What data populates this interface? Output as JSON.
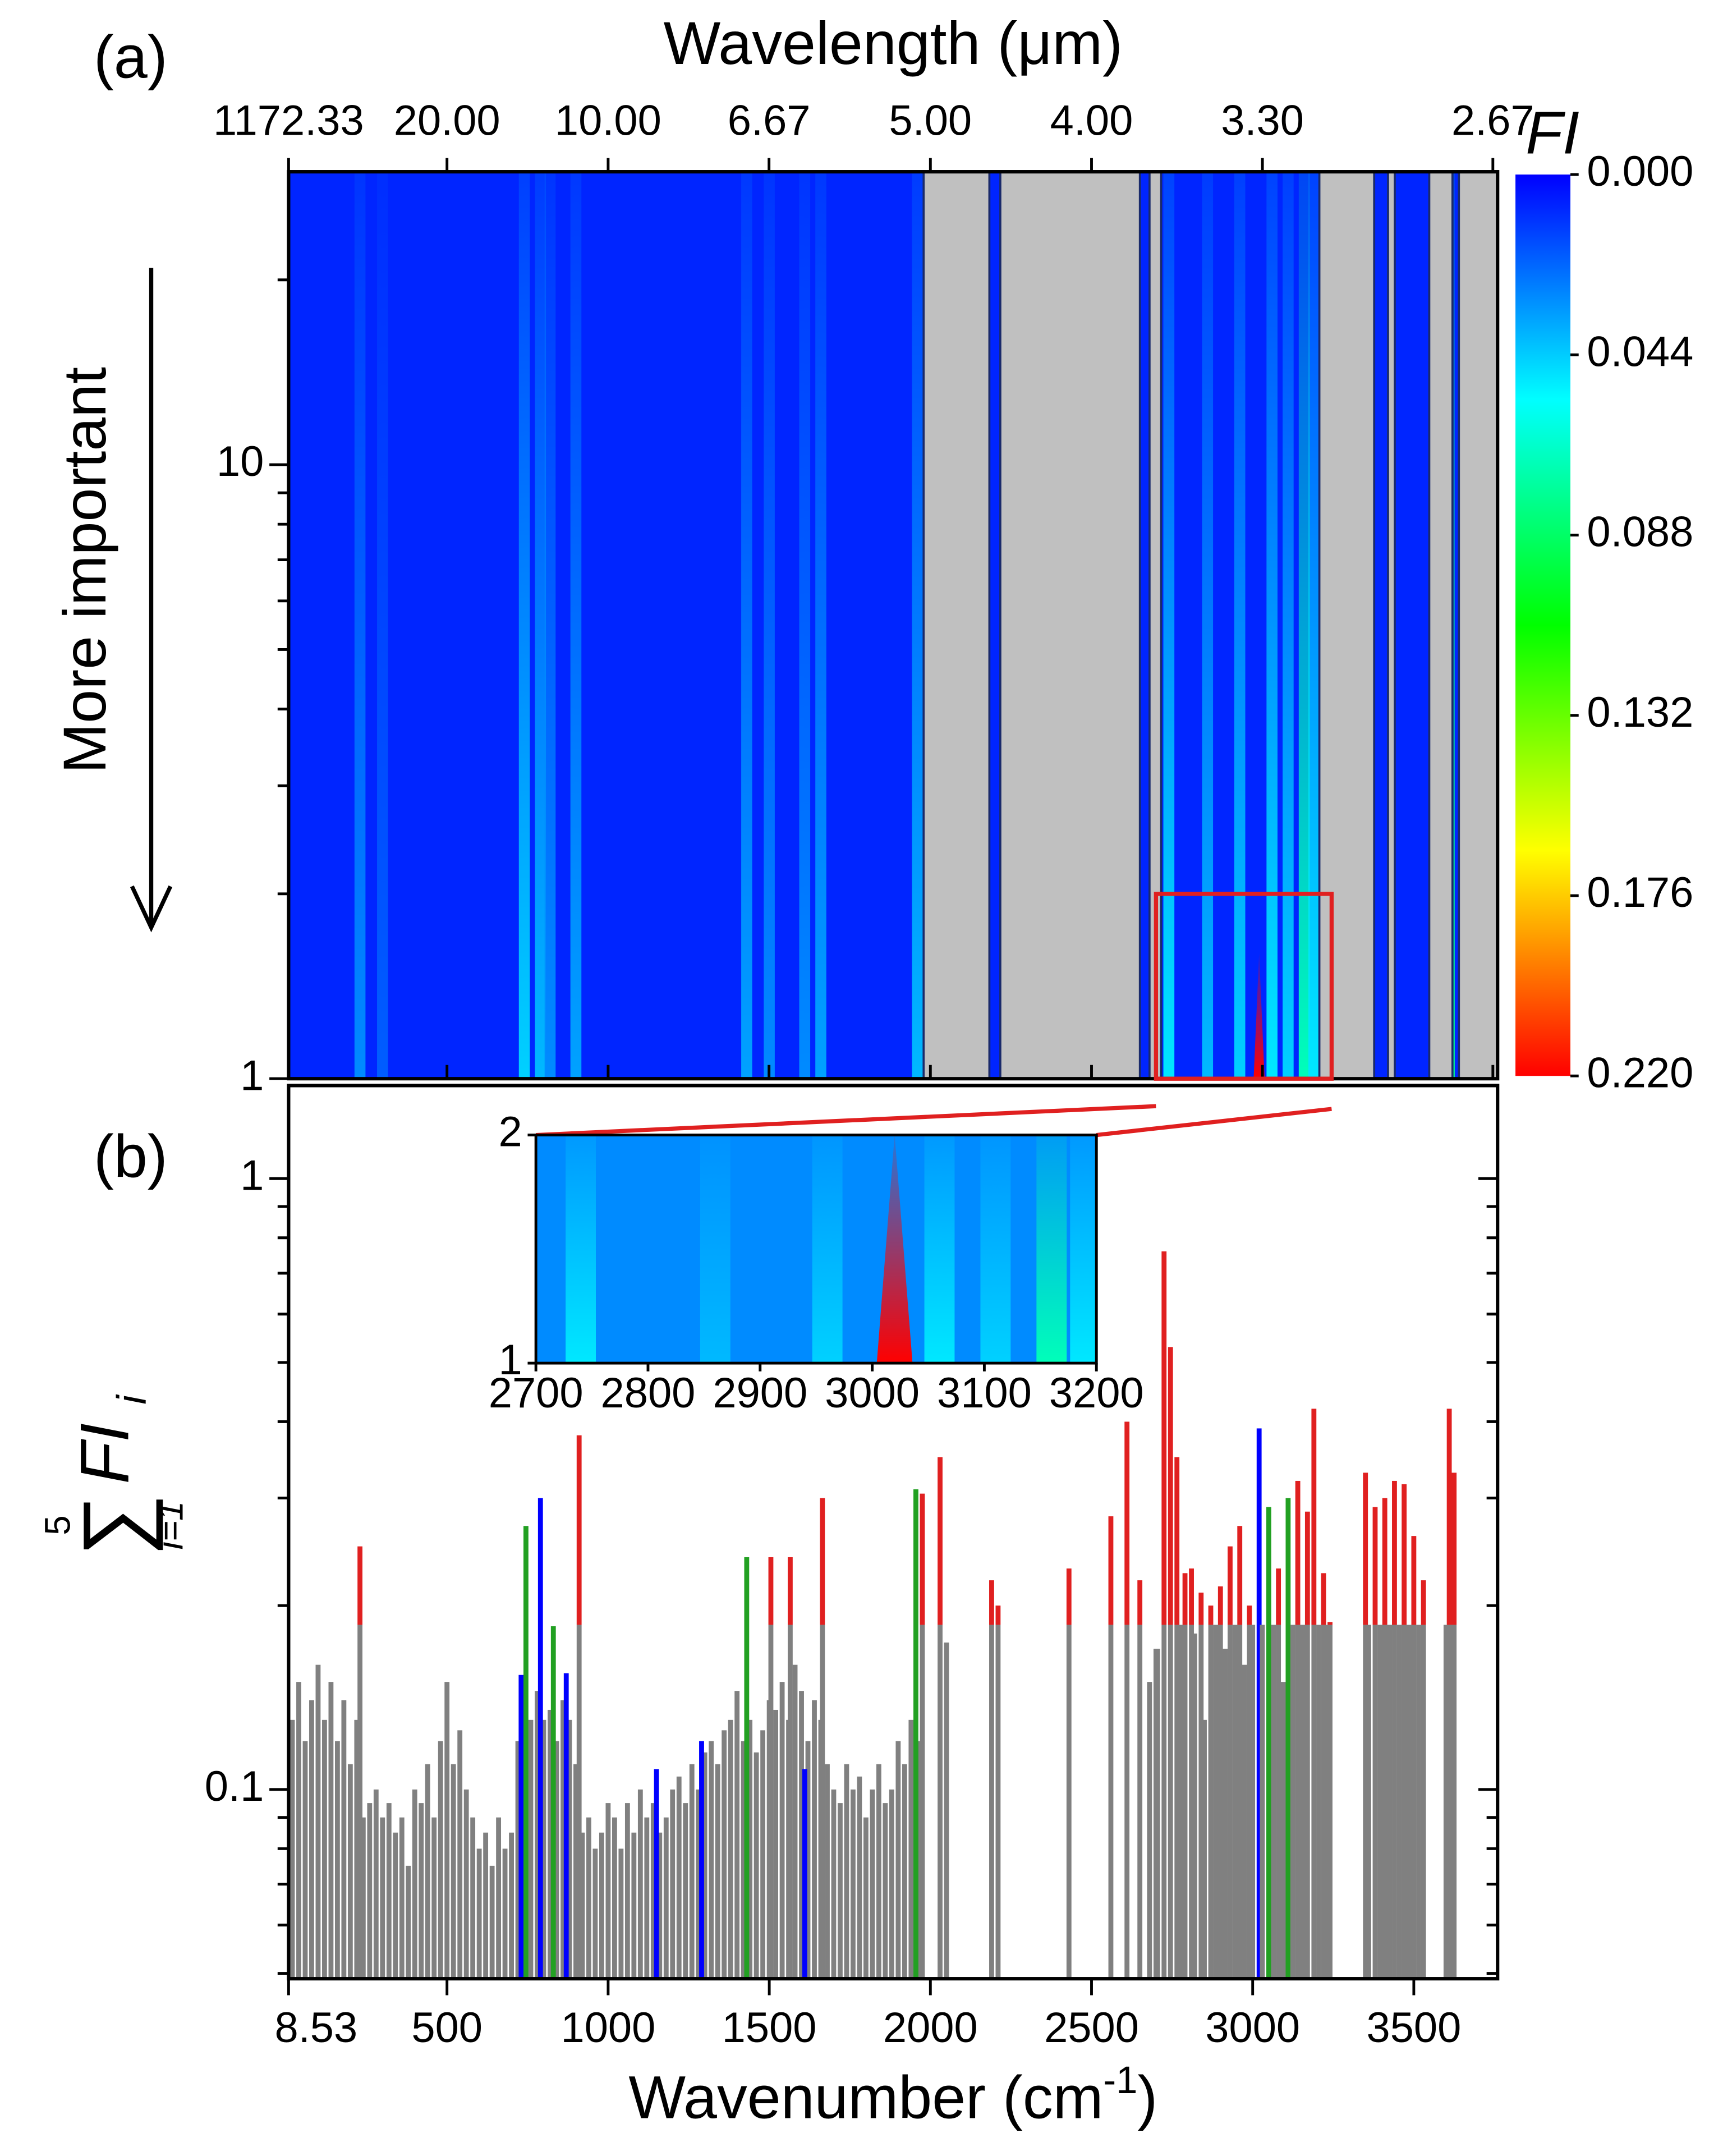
{
  "chart_data": [
    {
      "type": "heatmap",
      "panel_label": "(a)",
      "title": "Wavelength (μm)",
      "ylabel": "More important",
      "colorbar_label": "FI",
      "xlim": [
        8.53,
        3760
      ],
      "ylim": [
        1,
        30
      ],
      "log_y": true,
      "yticks": [
        1,
        10
      ],
      "yminor": [
        2,
        3,
        4,
        5,
        6,
        7,
        8,
        9,
        20
      ],
      "top_ticks": [
        1172.33,
        {
          "value": 20,
          "label": "20.00"
        },
        {
          "value": 10,
          "label": "10.00"
        },
        6.67,
        {
          "value": 5,
          "label": "5.00"
        },
        {
          "value": 4,
          "label": "4.00"
        },
        {
          "value": 3.3,
          "label": "3.30"
        },
        2.67
      ],
      "clim": [
        0,
        0.22
      ],
      "cticks": [
        {
          "value": 0,
          "label": "0.000"
        },
        0.044,
        0.088,
        0.132,
        0.176,
        {
          "value": 0.22,
          "label": "0.220"
        }
      ],
      "colormap": [
        "#0000ff",
        "#00ffff",
        "#00ff00",
        "#ffff00",
        "#ff0000"
      ],
      "background_fi": 0.008,
      "mask_color": "#c0c0c0",
      "masked_ranges": [
        [
          1979,
          2183
        ],
        [
          2217,
          2650
        ],
        [
          2680,
          2716
        ],
        [
          3207,
          3377
        ],
        [
          3420,
          3441
        ],
        [
          3548,
          3620
        ],
        [
          3640,
          3760
        ]
      ],
      "stripes": [
        {
          "x": 230,
          "fi": 0.03
        },
        {
          "x": 300,
          "fi": 0.02
        },
        {
          "x": 740,
          "fi": 0.045
        },
        {
          "x": 790,
          "fi": 0.04
        },
        {
          "x": 820,
          "fi": 0.03
        },
        {
          "x": 900,
          "fi": 0.035
        },
        {
          "x": 1430,
          "fi": 0.035
        },
        {
          "x": 1500,
          "fi": 0.03
        },
        {
          "x": 1610,
          "fi": 0.03
        },
        {
          "x": 1660,
          "fi": 0.035
        },
        {
          "x": 1960,
          "fi": 0.04
        },
        {
          "x": 2740,
          "fi": 0.05
        },
        {
          "x": 2860,
          "fi": 0.04
        },
        {
          "x": 2960,
          "fi": 0.045
        },
        {
          "x": 3020,
          "fi": 0.22
        },
        {
          "x": 3060,
          "fi": 0.05
        },
        {
          "x": 3110,
          "fi": 0.045
        },
        {
          "x": 3160,
          "fi": 0.07
        },
        {
          "x": 3190,
          "fi": 0.05
        },
        {
          "x": 3610,
          "fi": 0.08
        }
      ],
      "box": {
        "xlim": [
          2700,
          3245
        ],
        "ylim": [
          1,
          2
        ],
        "color": "#e02020"
      },
      "inset": {
        "xlim": [
          2700,
          3200
        ],
        "ylim": [
          1,
          2
        ],
        "xticks": [
          2700,
          2800,
          2900,
          3000,
          3100,
          3200
        ],
        "yticks": [
          1,
          2
        ],
        "background_fi": 0.03
      }
    },
    {
      "type": "bar",
      "panel_label": "(b)",
      "xlabel": {
        "text": "Wavenumber (cm",
        "sup": "-1",
        "end": ")"
      },
      "ylabel": {
        "upper": "5",
        "sum": "∑",
        "lower": "i=1",
        "term": "FI",
        "sub": "i"
      },
      "xlim": [
        8.53,
        3760
      ],
      "ylim": [
        0.049,
        1.42
      ],
      "log_y": true,
      "xticks": [
        8.53,
        500,
        1000,
        1500,
        2000,
        2500,
        3000,
        3500
      ],
      "yticks": [
        0.1,
        1
      ],
      "yminor": [
        0.05,
        0.06,
        0.07,
        0.08,
        0.09,
        0.2,
        0.3,
        0.4,
        0.5,
        0.6,
        0.7,
        0.8,
        0.9
      ],
      "highlight_above": 0.186,
      "highlight_color": "#e02020",
      "x": [
        20,
        40,
        60,
        80,
        100,
        120,
        140,
        160,
        180,
        200,
        220,
        240,
        260,
        280,
        300,
        320,
        340,
        360,
        380,
        400,
        420,
        440,
        460,
        480,
        500,
        520,
        540,
        560,
        580,
        600,
        620,
        640,
        660,
        680,
        700,
        720,
        740,
        760,
        780,
        800,
        820,
        840,
        860,
        880,
        900,
        920,
        940,
        960,
        980,
        1000,
        1020,
        1040,
        1060,
        1080,
        1100,
        1120,
        1140,
        1160,
        1180,
        1200,
        1220,
        1240,
        1260,
        1280,
        1300,
        1320,
        1340,
        1360,
        1380,
        1400,
        1420,
        1440,
        1460,
        1480,
        1500,
        1520,
        1540,
        1560,
        1580,
        1600,
        1620,
        1640,
        1660,
        1680,
        1700,
        1720,
        1740,
        1760,
        1780,
        1800,
        1820,
        1840,
        1860,
        1880,
        1900,
        1920,
        1940,
        1960,
        230,
        730,
        745,
        790,
        830,
        870,
        910,
        1150,
        1290,
        1430,
        1505,
        1565,
        1610,
        1665,
        1955,
        1975,
        2030,
        2050,
        2190,
        2210,
        2430,
        2560,
        2610,
        2650,
        2680,
        2700,
        2705,
        2725,
        2745,
        2765,
        2780,
        2790,
        2810,
        2820,
        2840,
        2850,
        2870,
        2885,
        2900,
        2915,
        2930,
        2945,
        2960,
        2975,
        2990,
        3000,
        3020,
        3030,
        3050,
        3065,
        3080,
        3095,
        3110,
        3125,
        3140,
        3155,
        3170,
        3190,
        3205,
        3220,
        3230,
        3240,
        3350,
        3360,
        3380,
        3395,
        3410,
        3425,
        3440,
        3455,
        3470,
        3485,
        3500,
        3515,
        3530,
        3600,
        3610,
        3625
      ],
      "values": [
        0.13,
        0.15,
        0.12,
        0.14,
        0.16,
        0.13,
        0.15,
        0.12,
        0.14,
        0.11,
        0.13,
        0.09,
        0.095,
        0.1,
        0.09,
        0.095,
        0.085,
        0.09,
        0.075,
        0.1,
        0.095,
        0.11,
        0.09,
        0.12,
        0.15,
        0.11,
        0.125,
        0.1,
        0.09,
        0.08,
        0.085,
        0.075,
        0.09,
        0.08,
        0.085,
        0.12,
        0.14,
        0.13,
        0.145,
        0.13,
        0.135,
        0.12,
        0.14,
        0.13,
        0.11,
        0.085,
        0.09,
        0.08,
        0.085,
        0.095,
        0.09,
        0.08,
        0.095,
        0.085,
        0.1,
        0.09,
        0.095,
        0.085,
        0.09,
        0.1,
        0.105,
        0.095,
        0.11,
        0.1,
        0.115,
        0.12,
        0.11,
        0.125,
        0.13,
        0.145,
        0.12,
        0.13,
        0.115,
        0.125,
        0.14,
        0.135,
        0.15,
        0.13,
        0.16,
        0.145,
        0.12,
        0.14,
        0.13,
        0.11,
        0.1,
        0.095,
        0.11,
        0.1,
        0.105,
        0.09,
        0.1,
        0.11,
        0.095,
        0.1,
        0.12,
        0.11,
        0.13,
        0.12,
        0.25,
        0.154,
        0.27,
        0.3,
        0.185,
        0.155,
        0.38,
        0.108,
        0.12,
        0.24,
        0.24,
        0.24,
        0.108,
        0.3,
        0.31,
        0.305,
        0.35,
        0.174,
        0.22,
        0.2,
        0.23,
        0.28,
        0.4,
        0.22,
        0.15,
        0.17,
        0.17,
        0.76,
        0.53,
        0.35,
        0.186,
        0.226,
        0.23,
        0.18,
        0.21,
        0.13,
        0.2,
        0.186,
        0.215,
        0.17,
        0.25,
        0.186,
        0.27,
        0.16,
        0.2,
        0.186,
        0.39,
        0.186,
        0.29,
        0.186,
        0.23,
        0.15,
        0.3,
        0.186,
        0.32,
        0.186,
        0.285,
        0.42,
        0.186,
        0.226,
        0.186,
        0.188,
        0.33,
        0.186,
        0.29,
        0.186,
        0.3,
        0.186,
        0.32,
        0.186,
        0.316,
        0.186,
        0.26,
        0.186,
        0.22,
        0.186,
        0.42,
        0.33
      ],
      "colors": [
        "#808080",
        "#808080",
        "#808080",
        "#808080",
        "#808080",
        "#808080",
        "#808080",
        "#808080",
        "#808080",
        "#808080",
        "#808080",
        "#808080",
        "#808080",
        "#808080",
        "#808080",
        "#808080",
        "#808080",
        "#808080",
        "#808080",
        "#808080",
        "#808080",
        "#808080",
        "#808080",
        "#808080",
        "#808080",
        "#808080",
        "#808080",
        "#808080",
        "#808080",
        "#808080",
        "#808080",
        "#808080",
        "#808080",
        "#808080",
        "#808080",
        "#808080",
        "#808080",
        "#808080",
        "#808080",
        "#808080",
        "#808080",
        "#808080",
        "#808080",
        "#808080",
        "#808080",
        "#808080",
        "#808080",
        "#808080",
        "#808080",
        "#808080",
        "#808080",
        "#808080",
        "#808080",
        "#808080",
        "#808080",
        "#808080",
        "#808080",
        "#808080",
        "#808080",
        "#808080",
        "#808080",
        "#808080",
        "#808080",
        "#808080",
        "#808080",
        "#808080",
        "#808080",
        "#808080",
        "#808080",
        "#808080",
        "#808080",
        "#808080",
        "#808080",
        "#808080",
        "#808080",
        "#808080",
        "#808080",
        "#808080",
        "#808080",
        "#808080",
        "#808080",
        "#808080",
        "#808080",
        "#808080",
        "#808080",
        "#808080",
        "#808080",
        "#808080",
        "#808080",
        "#808080",
        "#808080",
        "#808080",
        "#808080",
        "#808080",
        "#808080",
        "#808080",
        "#808080",
        "#808080",
        "#808080",
        "#0000ff",
        "#22a022",
        "#0000ff",
        "#22a022",
        "#0000ff",
        "#808080",
        "#0000ff",
        "#0000ff",
        "#22a022",
        "#808080",
        "#808080",
        "#0000ff",
        "#808080",
        "#22a022",
        "#808080",
        "#808080",
        "#808080",
        "#808080",
        "#808080",
        "#808080",
        "#808080",
        "#808080",
        "#808080",
        "#808080",
        "#808080",
        "#808080",
        "#808080",
        "#808080",
        "#808080",
        "#808080",
        "#808080",
        "#808080",
        "#808080",
        "#808080",
        "#808080",
        "#808080",
        "#808080",
        "#808080",
        "#808080",
        "#808080",
        "#808080",
        "#808080",
        "#808080",
        "#808080",
        "#808080",
        "#0000ff",
        "#808080",
        "#22a022",
        "#808080",
        "#808080",
        "#808080",
        "#22a022",
        "#808080",
        "#808080",
        "#808080",
        "#808080",
        "#808080",
        "#808080",
        "#808080",
        "#808080",
        "#808080",
        "#808080",
        "#808080",
        "#808080",
        "#808080",
        "#808080",
        "#808080",
        "#808080",
        "#808080",
        "#808080",
        "#808080",
        "#808080",
        "#808080",
        "#808080",
        "#808080",
        "#808080",
        "#808080"
      ]
    }
  ]
}
